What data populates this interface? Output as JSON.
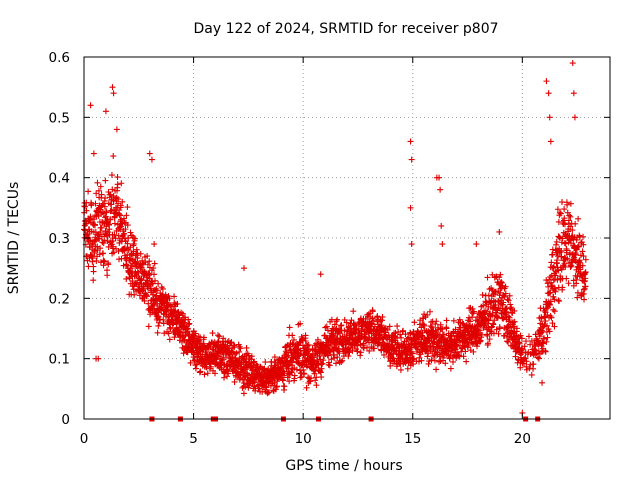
{
  "chart_data": {
    "type": "scatter",
    "title": "Day 122 of 2024, SRMTID for receiver p807",
    "xlabel": "GPS time / hours",
    "ylabel": "SRMTID / TECUs",
    "xlim": [
      0,
      24
    ],
    "ylim": [
      0,
      0.6
    ],
    "xticks": [
      0,
      5,
      10,
      15,
      20
    ],
    "yticks": [
      0,
      0.1,
      0.2,
      0.3,
      0.4,
      0.5,
      0.6
    ],
    "xtick_labels": [
      "0",
      "5",
      "10",
      "15",
      "20"
    ],
    "ytick_labels": [
      "0",
      "0.1",
      "0.2",
      "0.3",
      "0.4",
      "0.5",
      "0.6"
    ],
    "grid": true,
    "legend": "none",
    "marker": "plus",
    "color": "#e00000",
    "envelope": {
      "x": [
        0,
        0.5,
        1,
        1.5,
        2,
        2.5,
        3,
        3.5,
        4,
        4.5,
        5,
        5.5,
        6,
        6.5,
        7,
        7.5,
        8,
        8.5,
        9,
        9.5,
        10,
        10.5,
        11,
        11.5,
        12,
        12.5,
        13,
        13.5,
        14,
        14.5,
        15,
        15.5,
        16,
        16.5,
        17,
        17.5,
        18,
        18.5,
        19,
        19.5,
        20,
        20.5,
        21,
        21.5,
        22,
        22.5,
        22.9
      ],
      "median": [
        0.32,
        0.3,
        0.33,
        0.35,
        0.27,
        0.24,
        0.21,
        0.19,
        0.17,
        0.15,
        0.12,
        0.1,
        0.11,
        0.1,
        0.09,
        0.08,
        0.07,
        0.07,
        0.08,
        0.11,
        0.1,
        0.09,
        0.12,
        0.13,
        0.13,
        0.14,
        0.15,
        0.14,
        0.12,
        0.11,
        0.12,
        0.14,
        0.13,
        0.12,
        0.13,
        0.14,
        0.15,
        0.18,
        0.2,
        0.15,
        0.1,
        0.11,
        0.15,
        0.25,
        0.3,
        0.27,
        0.24
      ],
      "spread": [
        0.08,
        0.09,
        0.1,
        0.1,
        0.07,
        0.06,
        0.06,
        0.05,
        0.04,
        0.04,
        0.04,
        0.035,
        0.04,
        0.04,
        0.04,
        0.035,
        0.03,
        0.03,
        0.035,
        0.05,
        0.05,
        0.04,
        0.04,
        0.045,
        0.04,
        0.04,
        0.04,
        0.04,
        0.04,
        0.04,
        0.04,
        0.045,
        0.045,
        0.04,
        0.045,
        0.045,
        0.045,
        0.06,
        0.06,
        0.05,
        0.04,
        0.04,
        0.05,
        0.1,
        0.09,
        0.08,
        0.06
      ]
    },
    "outliers": [
      {
        "x": 0.3,
        "y": 0.52
      },
      {
        "x": 0.45,
        "y": 0.44
      },
      {
        "x": 0.55,
        "y": 0.1
      },
      {
        "x": 0.65,
        "y": 0.1
      },
      {
        "x": 1.0,
        "y": 0.51
      },
      {
        "x": 1.3,
        "y": 0.55
      },
      {
        "x": 1.35,
        "y": 0.54
      },
      {
        "x": 1.5,
        "y": 0.48
      },
      {
        "x": 3.0,
        "y": 0.44
      },
      {
        "x": 3.1,
        "y": 0.43
      },
      {
        "x": 3.2,
        "y": 0.29
      },
      {
        "x": 7.3,
        "y": 0.25
      },
      {
        "x": 10.8,
        "y": 0.24
      },
      {
        "x": 14.9,
        "y": 0.46
      },
      {
        "x": 14.95,
        "y": 0.43
      },
      {
        "x": 14.9,
        "y": 0.35
      },
      {
        "x": 14.95,
        "y": 0.29
      },
      {
        "x": 16.1,
        "y": 0.4
      },
      {
        "x": 16.2,
        "y": 0.4
      },
      {
        "x": 16.25,
        "y": 0.38
      },
      {
        "x": 16.3,
        "y": 0.32
      },
      {
        "x": 16.35,
        "y": 0.29
      },
      {
        "x": 17.9,
        "y": 0.29
      },
      {
        "x": 18.95,
        "y": 0.31
      },
      {
        "x": 21.1,
        "y": 0.56
      },
      {
        "x": 21.2,
        "y": 0.54
      },
      {
        "x": 21.25,
        "y": 0.5
      },
      {
        "x": 21.3,
        "y": 0.46
      },
      {
        "x": 22.3,
        "y": 0.59
      },
      {
        "x": 22.35,
        "y": 0.54
      },
      {
        "x": 22.4,
        "y": 0.5
      },
      {
        "x": 20.0,
        "y": 0.01
      },
      {
        "x": 20.9,
        "y": 0.06
      }
    ],
    "zero_marks": [
      3.1,
      4.4,
      5.9,
      6.0,
      9.1,
      10.7,
      13.1,
      20.15,
      20.7
    ]
  }
}
